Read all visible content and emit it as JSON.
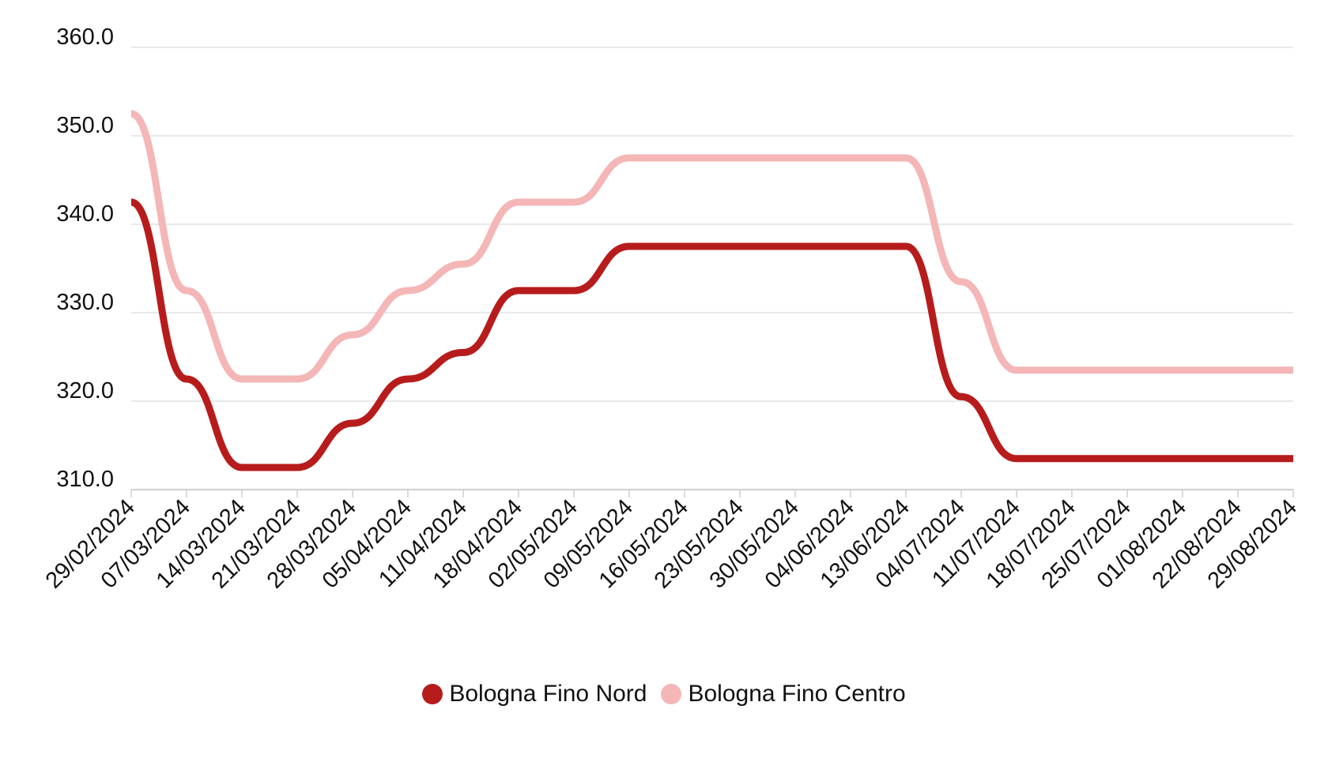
{
  "chart_data": {
    "type": "line",
    "title": "",
    "xlabel": "",
    "ylabel": "",
    "ylim": [
      310,
      360
    ],
    "yticks": [
      "310.0",
      "320.0",
      "330.0",
      "340.0",
      "350.0",
      "360.0"
    ],
    "grid": true,
    "legend_position": "bottom",
    "categories": [
      "29/02/2024",
      "07/03/2024",
      "14/03/2024",
      "21/03/2024",
      "28/03/2024",
      "05/04/2024",
      "11/04/2024",
      "18/04/2024",
      "02/05/2024",
      "09/05/2024",
      "16/05/2024",
      "23/05/2024",
      "30/05/2024",
      "04/06/2024",
      "13/06/2024",
      "04/07/2024",
      "11/07/2024",
      "18/07/2024",
      "25/07/2024",
      "01/08/2024",
      "22/08/2024",
      "29/08/2024"
    ],
    "series": [
      {
        "name": "Bologna Fino Nord",
        "color": "#b71c1c",
        "values": [
          342.5,
          322.5,
          312.5,
          312.5,
          317.5,
          322.5,
          325.5,
          332.5,
          332.5,
          337.5,
          337.5,
          337.5,
          337.5,
          337.5,
          337.5,
          320.5,
          313.5,
          313.5,
          313.5,
          313.5,
          313.5,
          313.5
        ]
      },
      {
        "name": "Bologna Fino Centro",
        "color": "#f4b6b6",
        "values": [
          352.5,
          332.5,
          322.5,
          322.5,
          327.5,
          332.5,
          335.5,
          342.5,
          342.5,
          347.5,
          347.5,
          347.5,
          347.5,
          347.5,
          347.5,
          333.5,
          323.5,
          323.5,
          323.5,
          323.5,
          323.5,
          323.5
        ]
      }
    ]
  }
}
